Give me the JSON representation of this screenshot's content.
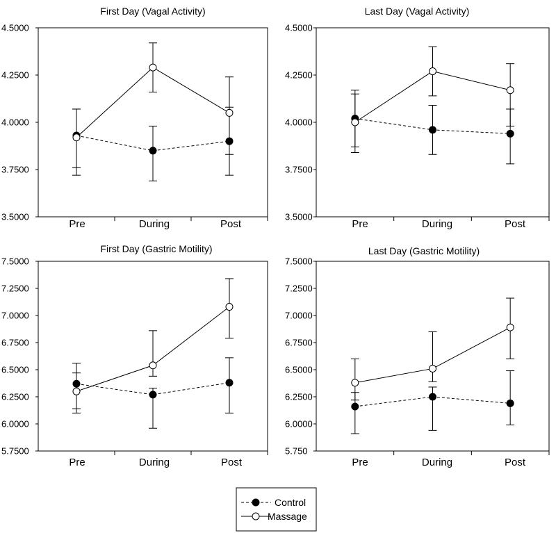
{
  "legend": {
    "items": [
      {
        "name": "Control",
        "marker": "filled-circle",
        "line": "dashed"
      },
      {
        "name": "Massage",
        "marker": "open-circle",
        "line": "solid"
      }
    ]
  },
  "chart_data": [
    {
      "type": "line",
      "title": "First Day  (Vagal Activity)",
      "categories": [
        "Pre",
        "During",
        "Post"
      ],
      "ylim": [
        3.5,
        4.5
      ],
      "yticks": [
        "4.5000",
        "4.2500",
        "4.0000",
        "3.7500",
        "3.5000"
      ],
      "ytick_values": [
        4.5,
        4.25,
        4.0,
        3.75,
        3.5
      ],
      "series": [
        {
          "name": "Control",
          "values": [
            3.93,
            3.85,
            3.9
          ],
          "err_low": [
            3.72,
            3.69,
            3.72
          ],
          "err_high": [
            4.07,
            3.98,
            4.08
          ]
        },
        {
          "name": "Massage",
          "values": [
            3.92,
            4.29,
            4.05
          ],
          "err_low": [
            3.76,
            4.16,
            3.83
          ],
          "err_high": [
            4.07,
            4.42,
            4.24
          ]
        }
      ]
    },
    {
      "type": "line",
      "title": "Last Day  (Vagal Activity)",
      "categories": [
        "Pre",
        "During",
        "Post"
      ],
      "ylim": [
        3.5,
        4.5
      ],
      "yticks": [
        "4.5000",
        "4.2500",
        "4.0000",
        "3.7500",
        "3.5000"
      ],
      "ytick_values": [
        4.5,
        4.25,
        4.0,
        3.75,
        3.5
      ],
      "series": [
        {
          "name": "Control",
          "values": [
            4.02,
            3.96,
            3.94
          ],
          "err_low": [
            3.84,
            3.83,
            3.78
          ],
          "err_high": [
            4.15,
            4.09,
            4.07
          ]
        },
        {
          "name": "Massage",
          "values": [
            4.0,
            4.27,
            4.17
          ],
          "err_low": [
            3.87,
            4.14,
            3.98
          ],
          "err_high": [
            4.17,
            4.4,
            4.31
          ]
        }
      ]
    },
    {
      "type": "line",
      "title": "First Day  (Gastric Motility)",
      "categories": [
        "Pre",
        "During",
        "Post"
      ],
      "ylim": [
        5.75,
        7.5
      ],
      "yticks": [
        "7.5000",
        "7.2500",
        "7.0000",
        "6.7500",
        "6.5000",
        "6.2500",
        "6.0000",
        "5.7500"
      ],
      "ytick_values": [
        7.5,
        7.25,
        7.0,
        6.75,
        6.5,
        6.25,
        6.0,
        5.75
      ],
      "series": [
        {
          "name": "Control",
          "values": [
            6.37,
            6.27,
            6.38
          ],
          "err_low": [
            6.14,
            5.96,
            6.1
          ],
          "err_high": [
            6.47,
            6.33,
            6.61
          ]
        },
        {
          "name": "Massage",
          "values": [
            6.3,
            6.54,
            7.08
          ],
          "err_low": [
            6.1,
            6.44,
            6.79
          ],
          "err_high": [
            6.56,
            6.86,
            7.34
          ]
        }
      ]
    },
    {
      "type": "line",
      "title": "Last Day  (Gastric Motility)",
      "categories": [
        "Pre",
        "During",
        "Post"
      ],
      "ylim": [
        5.75,
        7.5
      ],
      "yticks": [
        "7.5000",
        "7.2500",
        "7.0000",
        "6.7500",
        "6.5000",
        "6.2500",
        "6.0000",
        "5.750"
      ],
      "ytick_values": [
        7.5,
        7.25,
        7.0,
        6.75,
        6.5,
        6.25,
        6.0,
        5.75
      ],
      "series": [
        {
          "name": "Control",
          "values": [
            6.16,
            6.25,
            6.19
          ],
          "err_low": [
            5.91,
            5.94,
            5.99
          ],
          "err_high": [
            6.29,
            6.34,
            6.49
          ]
        },
        {
          "name": "Massage",
          "values": [
            6.38,
            6.51,
            6.89
          ],
          "err_low": [
            6.22,
            6.39,
            6.6
          ],
          "err_high": [
            6.6,
            6.85,
            7.16
          ]
        }
      ]
    }
  ]
}
